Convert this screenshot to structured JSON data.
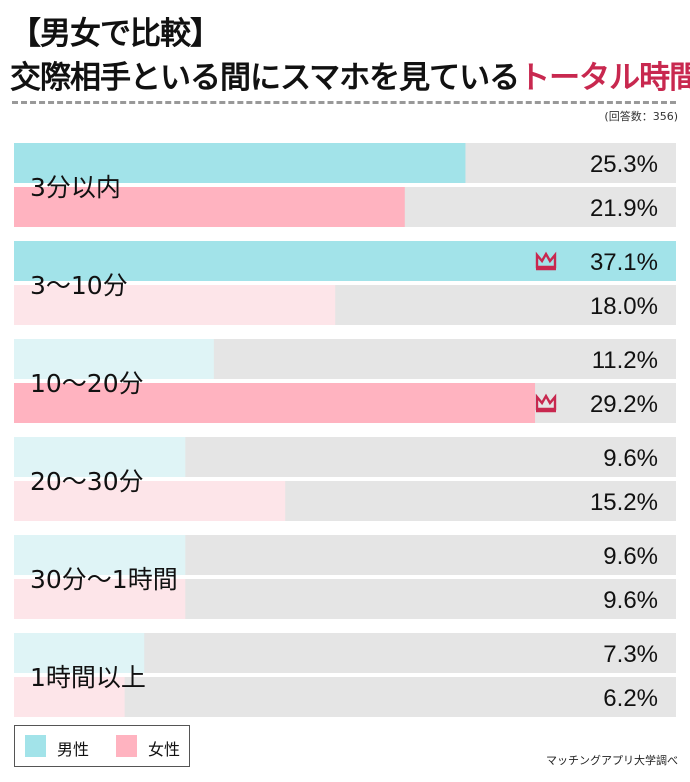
{
  "title_line1": "【男女で比較】",
  "title_line2_main": "交際相手といる間にスマホを見ている",
  "title_line2_highlight": "トータル時間",
  "respondents": "(回答数：356)",
  "source": "マッチングアプリ大学調べ",
  "colors": {
    "male": "#a2e3e9",
    "male_pale": "#dff4f6",
    "female": "#ffb3c0",
    "female_pale": "#fde5e9",
    "track": "#e5e5e5",
    "crown": "#c8284f"
  },
  "chart_data": {
    "type": "bar",
    "orientation": "horizontal",
    "categories": [
      "3分以内",
      "3〜10分",
      "10〜20分",
      "20〜30分",
      "30分〜1時間",
      "1時間以上"
    ],
    "series": [
      {
        "name": "男性",
        "values": [
          25.3,
          37.1,
          11.2,
          9.6,
          9.6,
          7.3
        ],
        "labels": [
          "25.3%",
          "37.1%",
          "11.2%",
          "9.6%",
          "9.6%",
          "7.3%"
        ],
        "highlighted": [
          true,
          true,
          false,
          false,
          false,
          false
        ]
      },
      {
        "name": "女性",
        "values": [
          21.9,
          18.0,
          29.2,
          15.2,
          9.6,
          6.2
        ],
        "labels": [
          "21.9%",
          "18.0%",
          "29.2%",
          "15.2%",
          "9.6%",
          "6.2%"
        ],
        "highlighted": [
          true,
          false,
          true,
          false,
          false,
          false
        ]
      }
    ],
    "crown_marks": {
      "男性": "3〜10分",
      "女性": "10〜20分"
    },
    "xlim": [
      0,
      37.1
    ],
    "legend": "bottom-left",
    "grid": false
  }
}
